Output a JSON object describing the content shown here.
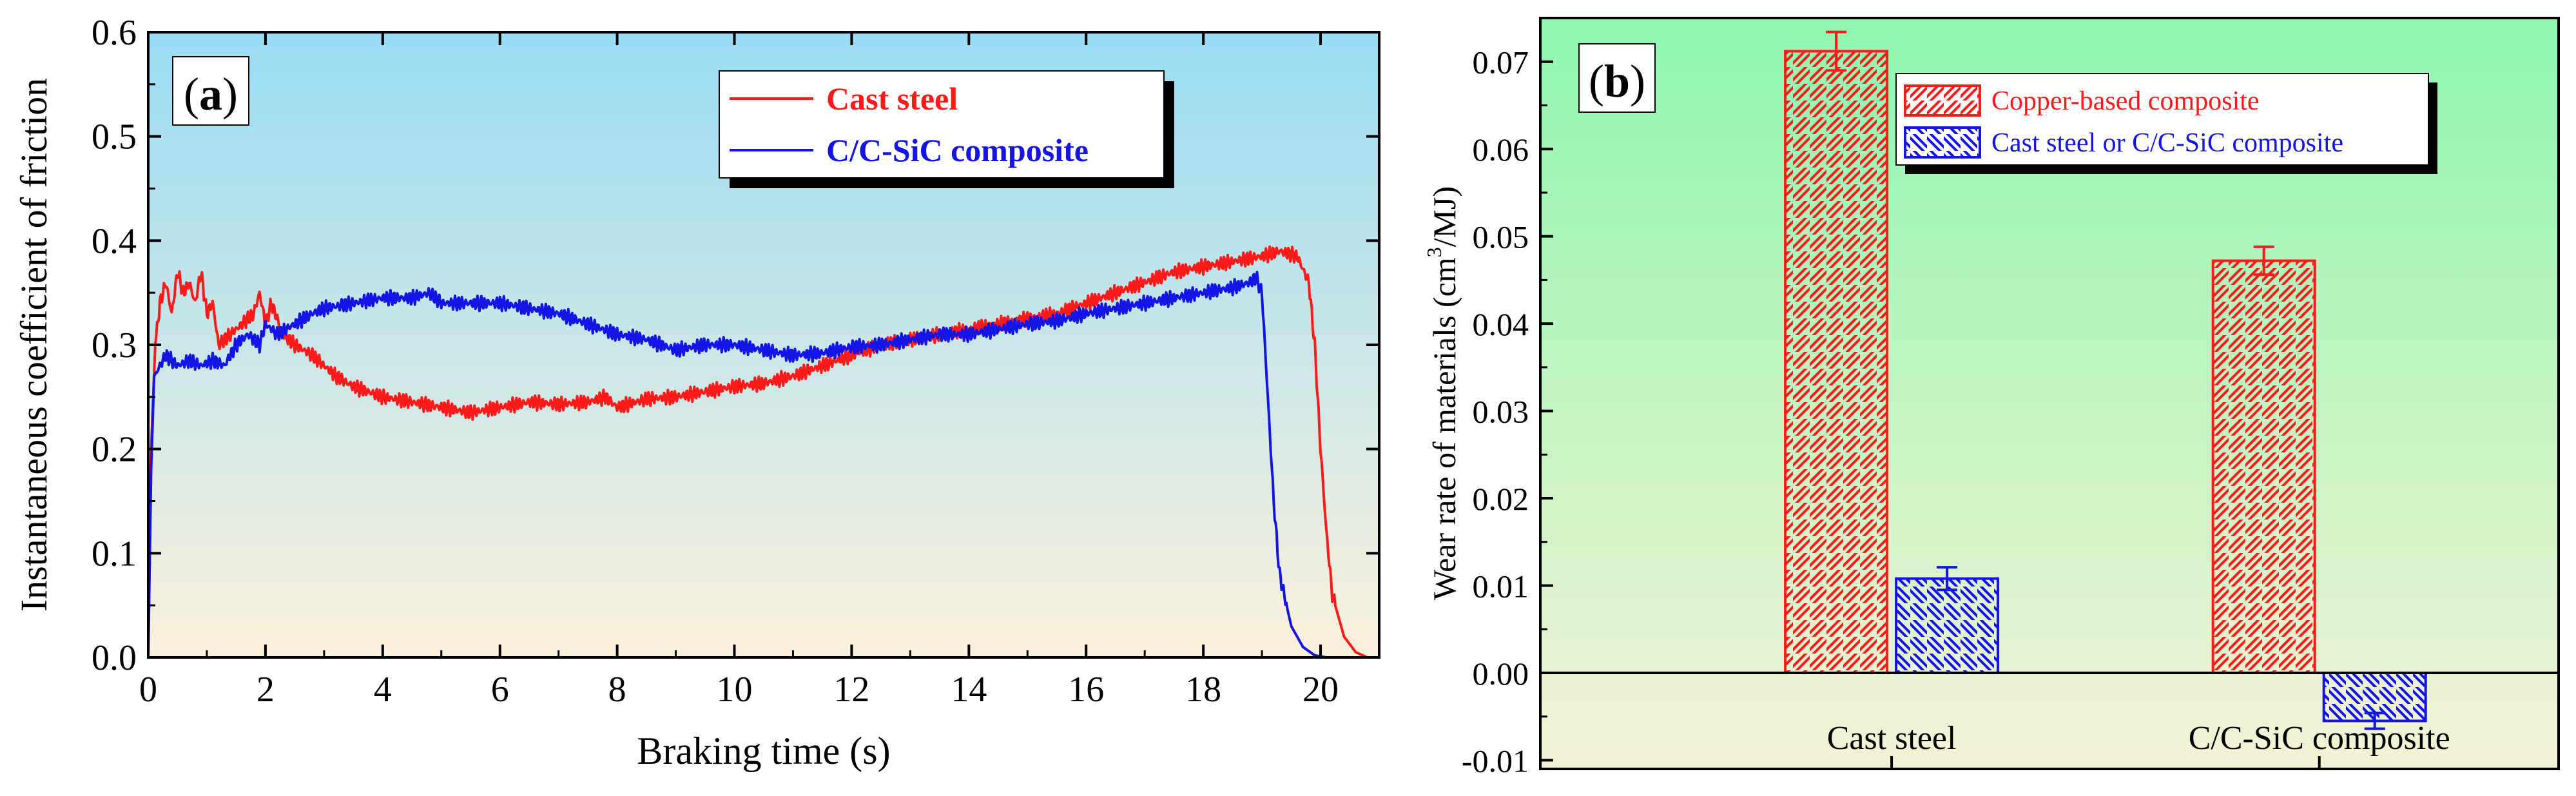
{
  "colors": {
    "red": "#ff1a1a",
    "blue": "#1414e6",
    "axis": "#000000",
    "bg_a_top": "#99dcf5",
    "bg_a_bottom": "#fbf1dc",
    "bg_b_top": "#8ef7b0",
    "bg_b_bottom": "#f5f2d6"
  },
  "chart_data": [
    {
      "type": "line",
      "panel_label": "a",
      "xlabel": "Braking time (s)",
      "ylabel": "Instantaneous coefficient of friction",
      "xlim": [
        0,
        21
      ],
      "ylim": [
        0,
        0.6
      ],
      "x_ticks": [
        0,
        2,
        4,
        6,
        8,
        10,
        12,
        14,
        16,
        18,
        20
      ],
      "y_ticks": [
        0.0,
        0.1,
        0.2,
        0.3,
        0.4,
        0.5,
        0.6
      ],
      "x_tick_labels": [
        "0",
        "2",
        "4",
        "6",
        "8",
        "10",
        "12",
        "14",
        "16",
        "18",
        "20"
      ],
      "y_tick_labels": [
        "0.0",
        "0.1",
        "0.2",
        "0.3",
        "0.4",
        "0.5",
        "0.6"
      ],
      "legend_position": "top-right",
      "series": [
        {
          "name": "Cast steel",
          "color": "#ff1a1a",
          "x": [
            0.0,
            0.05,
            0.12,
            0.2,
            0.3,
            0.4,
            0.5,
            0.6,
            0.7,
            0.8,
            0.9,
            1.0,
            1.1,
            1.2,
            1.4,
            1.6,
            1.8,
            1.9,
            2.0,
            2.1,
            2.3,
            2.5,
            2.8,
            3.0,
            3.2,
            3.5,
            4.0,
            4.5,
            5.0,
            5.5,
            6.0,
            6.5,
            7.0,
            7.5,
            7.8,
            8.0,
            8.5,
            9.0,
            9.5,
            10.0,
            10.5,
            11.0,
            11.5,
            12.0,
            12.5,
            13.0,
            13.5,
            14.0,
            14.5,
            15.0,
            15.5,
            16.0,
            16.5,
            17.0,
            17.5,
            18.0,
            18.5,
            19.0,
            19.3,
            19.6,
            19.8,
            19.9,
            20.0,
            20.1,
            20.2,
            20.4,
            20.6,
            20.8,
            21.0
          ],
          "y": [
            0.0,
            0.2,
            0.3,
            0.34,
            0.36,
            0.33,
            0.37,
            0.35,
            0.36,
            0.34,
            0.37,
            0.33,
            0.34,
            0.3,
            0.31,
            0.32,
            0.33,
            0.35,
            0.32,
            0.34,
            0.31,
            0.3,
            0.29,
            0.28,
            0.27,
            0.26,
            0.25,
            0.245,
            0.24,
            0.235,
            0.24,
            0.245,
            0.243,
            0.245,
            0.25,
            0.24,
            0.248,
            0.25,
            0.255,
            0.26,
            0.263,
            0.27,
            0.28,
            0.29,
            0.3,
            0.305,
            0.31,
            0.315,
            0.32,
            0.325,
            0.33,
            0.34,
            0.35,
            0.36,
            0.37,
            0.375,
            0.38,
            0.385,
            0.39,
            0.385,
            0.36,
            0.3,
            0.2,
            0.12,
            0.06,
            0.02,
            0.005,
            0.0,
            0.0
          ]
        },
        {
          "name": "C/C-SiC composite",
          "color": "#1414e6",
          "x": [
            0.0,
            0.05,
            0.1,
            0.2,
            0.3,
            0.5,
            0.7,
            0.9,
            1.1,
            1.3,
            1.5,
            1.7,
            1.9,
            2.0,
            2.2,
            2.5,
            2.8,
            3.0,
            3.5,
            4.0,
            4.5,
            4.8,
            5.0,
            5.5,
            6.0,
            6.5,
            7.0,
            7.5,
            8.0,
            8.5,
            9.0,
            9.5,
            10.0,
            10.5,
            11.0,
            11.5,
            12.0,
            12.5,
            13.0,
            13.5,
            14.0,
            14.5,
            15.0,
            15.5,
            16.0,
            16.5,
            17.0,
            17.5,
            18.0,
            18.5,
            18.8,
            18.9,
            19.0,
            19.1,
            19.2,
            19.3,
            19.5,
            19.7,
            19.9,
            20.1
          ],
          "y": [
            0.0,
            0.18,
            0.27,
            0.28,
            0.29,
            0.28,
            0.285,
            0.28,
            0.285,
            0.28,
            0.3,
            0.31,
            0.3,
            0.32,
            0.31,
            0.32,
            0.33,
            0.335,
            0.34,
            0.345,
            0.345,
            0.35,
            0.34,
            0.34,
            0.34,
            0.335,
            0.33,
            0.32,
            0.31,
            0.305,
            0.295,
            0.3,
            0.3,
            0.295,
            0.29,
            0.292,
            0.298,
            0.3,
            0.305,
            0.31,
            0.31,
            0.315,
            0.32,
            0.323,
            0.33,
            0.335,
            0.34,
            0.345,
            0.35,
            0.355,
            0.36,
            0.365,
            0.35,
            0.25,
            0.15,
            0.08,
            0.03,
            0.01,
            0.002,
            0.0
          ]
        }
      ]
    },
    {
      "type": "bar",
      "panel_label": "b",
      "xlabel": "",
      "ylabel_main": "Wear rate of materials (cm",
      "ylabel_sup": "3",
      "ylabel_end": "/MJ)",
      "ylim": [
        -0.011,
        0.075
      ],
      "y_ticks": [
        -0.01,
        0.0,
        0.01,
        0.02,
        0.03,
        0.04,
        0.05,
        0.06,
        0.07
      ],
      "y_tick_labels": [
        "-0.01",
        "0.00",
        "0.01",
        "0.02",
        "0.03",
        "0.04",
        "0.05",
        "0.06",
        "0.07"
      ],
      "categories": [
        "Cast steel",
        "C/C-SiC composite"
      ],
      "legend_position": "top-right",
      "series": [
        {
          "name": "Copper-based composite",
          "color": "#ff1a1a",
          "values": [
            0.0712,
            0.0472
          ],
          "errors": [
            0.0022,
            0.0016
          ]
        },
        {
          "name": "Cast steel or C/C-SiC composite",
          "color": "#1414e6",
          "values": [
            0.0108,
            -0.0055
          ],
          "errors": [
            0.0013,
            0.0009
          ]
        }
      ]
    }
  ]
}
